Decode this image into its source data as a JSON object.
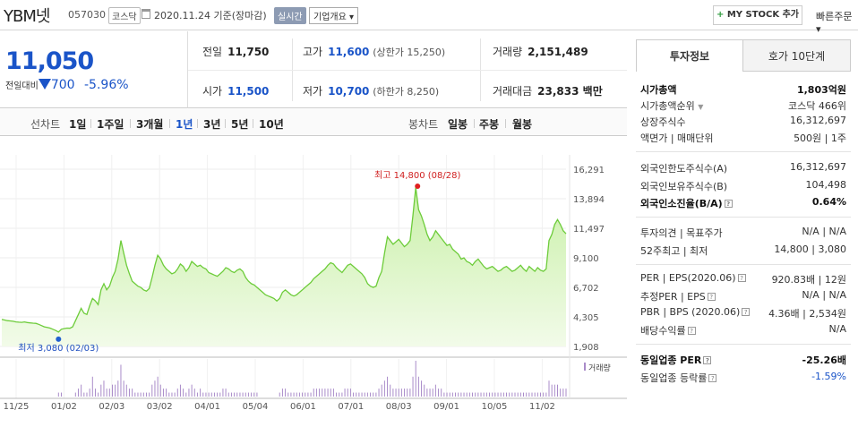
{
  "header": {
    "stock_name": "YBM넷",
    "stock_code": "057030",
    "market": "코스닥",
    "date": "2020.11.24 기준(장마감)",
    "realtime": "실시간",
    "company_overview": "기업개요 ▾",
    "my_stock_plus": "+",
    "my_stock": "MY STOCK 추가",
    "quick_order": "빠른주문 ▾"
  },
  "price": {
    "current": "11,050",
    "change_label": "전일대비",
    "change": "700",
    "change_pct": "-5.96%"
  },
  "quotes": {
    "prev_label": "전일",
    "prev": "11,750",
    "open_label": "시가",
    "open": "11,500",
    "high_label": "고가",
    "high": "11,600",
    "upper_limit": "(상한가 15,250)",
    "low_label": "저가",
    "low": "10,700",
    "lower_limit": "(하한가 8,250)",
    "volume_label": "거래량",
    "volume": "2,151,489",
    "amount_label": "거래대금",
    "amount": "23,833 백만"
  },
  "period_bar": {
    "line_label": "선차트",
    "line_periods": [
      "1일",
      "1주일",
      "3개월",
      "1년",
      "3년",
      "5년",
      "10년"
    ],
    "selected": "1년",
    "candle_label": "봉차트",
    "candle_periods": [
      "일봉",
      "주봉",
      "월봉"
    ]
  },
  "chart_data": {
    "type": "area",
    "x_tick_labels": [
      "11/25",
      "01/02",
      "02/03",
      "03/02",
      "04/01",
      "05/04",
      "06/01",
      "07/01",
      "08/03",
      "09/01",
      "10/05",
      "11/02"
    ],
    "y_tick_labels": [
      "16,291",
      "13,894",
      "11,497",
      "9,100",
      "6,702",
      "4,305",
      "1,908"
    ],
    "ylim": [
      1908,
      16291
    ],
    "max_annotation": "최고 14,800 (08/28)",
    "min_annotation": "최저 3,080 (02/03)",
    "volume_legend": "거래량",
    "series": [
      {
        "values": [
          4100,
          4050,
          4000,
          3980,
          3950,
          3900,
          3880,
          3860,
          3900,
          3850,
          3820,
          3800,
          3780,
          3700,
          3600,
          3500,
          3450,
          3400,
          3300,
          3200,
          3080,
          3300,
          3350,
          3400,
          3380,
          3500,
          4000,
          4500,
          5000,
          4600,
          4500,
          5200,
          5800,
          5600,
          5300,
          6500,
          7000,
          6500,
          6800,
          7500,
          8000,
          9000,
          10500,
          9500,
          8500,
          7800,
          7200,
          7000,
          6800,
          6700,
          6500,
          6400,
          6600,
          7500,
          8500,
          9300,
          9000,
          8500,
          8200,
          8000,
          7800,
          7900,
          8200,
          8600,
          8400,
          8000,
          8300,
          8800,
          8600,
          8400,
          8500,
          8300,
          8200,
          7900,
          7800,
          7700,
          7600,
          7800,
          8000,
          8300,
          8200,
          8000,
          7900,
          8100,
          8200,
          8000,
          7500,
          7200,
          7000,
          6900,
          6700,
          6500,
          6300,
          6100,
          6000,
          5900,
          5800,
          5600,
          5800,
          6300,
          6500,
          6300,
          6100,
          6000,
          6100,
          6300,
          6500,
          6700,
          6900,
          7100,
          7400,
          7600,
          7800,
          8000,
          8200,
          8500,
          8700,
          8600,
          8300,
          8100,
          7900,
          8200,
          8500,
          8600,
          8400,
          8200,
          8000,
          7800,
          7500,
          7000,
          6800,
          6700,
          6800,
          7500,
          8000,
          9500,
          10800,
          10500,
          10200,
          10400,
          10600,
          10300,
          10000,
          10200,
          10500,
          12500,
          14800,
          13000,
          12500,
          11800,
          11000,
          10500,
          10800,
          11300,
          11000,
          10700,
          10400,
          10100,
          10200,
          9800,
          9600,
          9400,
          9000,
          9100,
          8800,
          8700,
          8500,
          8800,
          9000,
          8700,
          8400,
          8200,
          8300,
          8400,
          8200,
          8000,
          8100,
          8300,
          8400,
          8200,
          8000,
          8100,
          8300,
          8500,
          8200,
          8000,
          8400,
          8200,
          8000,
          8300,
          8100,
          8000,
          8200,
          10500,
          11000,
          11800,
          12200,
          11800,
          11300,
          11050
        ]
      }
    ],
    "volume": [
      0,
      0,
      0,
      0,
      0,
      0,
      0,
      0,
      0,
      0,
      0,
      0,
      0,
      0,
      0,
      0,
      0,
      0,
      0,
      0,
      1,
      1,
      0,
      0,
      0,
      0,
      1,
      2,
      3,
      1,
      1,
      2,
      5,
      2,
      1,
      3,
      4,
      2,
      2,
      3,
      3,
      4,
      8,
      4,
      3,
      2,
      2,
      1,
      1,
      1,
      1,
      1,
      1,
      3,
      4,
      5,
      3,
      2,
      2,
      1,
      1,
      1,
      2,
      3,
      2,
      1,
      2,
      3,
      2,
      1,
      2,
      1,
      1,
      1,
      1,
      1,
      1,
      1,
      2,
      2,
      1,
      1,
      1,
      1,
      1,
      1,
      1,
      1,
      1,
      1,
      1,
      0,
      0,
      0,
      0,
      0,
      0,
      0,
      1,
      2,
      2,
      1,
      1,
      1,
      1,
      1,
      1,
      1,
      1,
      1,
      2,
      2,
      2,
      2,
      2,
      2,
      2,
      2,
      1,
      1,
      1,
      2,
      2,
      2,
      1,
      1,
      1,
      1,
      1,
      1,
      1,
      1,
      1,
      2,
      3,
      4,
      5,
      3,
      2,
      2,
      2,
      2,
      2,
      2,
      2,
      5,
      9,
      5,
      4,
      3,
      2,
      2,
      2,
      3,
      2,
      2,
      1,
      1,
      1,
      1,
      1,
      1,
      1,
      1,
      1,
      1,
      1,
      1,
      1,
      1,
      1,
      1,
      1,
      1,
      1,
      1,
      1,
      1,
      1,
      1,
      1,
      1,
      1,
      1,
      1,
      1,
      1,
      1,
      1,
      1,
      1,
      1,
      1,
      4,
      3,
      3,
      3,
      2,
      2,
      2
    ]
  },
  "right": {
    "tab_info": "투자정보",
    "tab_hoga": "호가 10단계",
    "market_cap_label": "시가총액",
    "market_cap": "1,803억원",
    "cap_rank_label": "시가총액순위",
    "cap_rank": "코스닥 466위",
    "shares_label": "상장주식수",
    "shares": "16,312,697",
    "par_label": "액면가 | 매매단위",
    "par": "500원 | 1주",
    "foreign_limit_label": "외국인한도주식수(A)",
    "foreign_limit": "16,312,697",
    "foreign_hold_label": "외국인보유주식수(B)",
    "foreign_hold": "104,498",
    "foreign_ratio_label": "외국인소진율(B/A)",
    "foreign_ratio": "0.64%",
    "opinion_label": "투자의견 | 목표주가",
    "opinion": "N/A | N/A",
    "w52_label": "52주최고 | 최저",
    "w52": "14,800 | 3,080",
    "per_label": "PER | EPS(2020.06)",
    "per": "920.83배 | 12원",
    "est_per_label": "추정PER | EPS",
    "est_per": "N/A | N/A",
    "pbr_label": "PBR | BPS (2020.06)",
    "pbr": "4.36배 | 2,534원",
    "div_label": "배당수익률",
    "div": "N/A",
    "sector_per_label": "동일업종 PER",
    "sector_per": "-25.26배",
    "sector_rate_label": "동일업종 등락률",
    "sector_rate": "-1.59%"
  }
}
